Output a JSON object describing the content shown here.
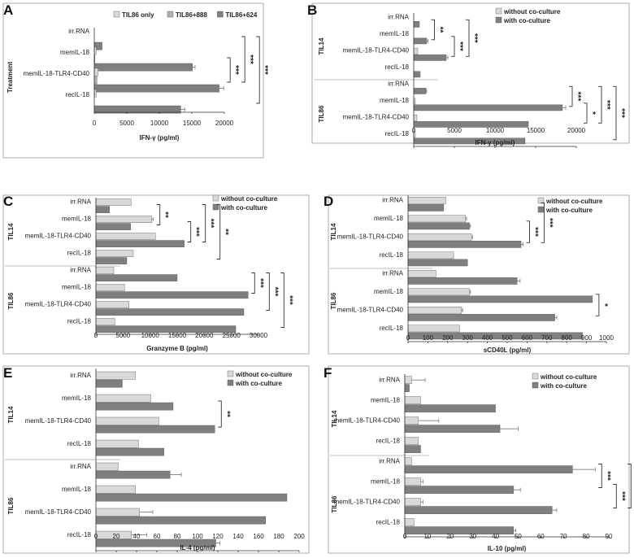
{
  "colors": {
    "light": "#d9d9d9",
    "mid": "#b0b0b0",
    "dark": "#7f7f7f"
  },
  "chart_data": [
    {
      "panel": "A",
      "type": "bar",
      "orientation": "horizontal",
      "title": "",
      "xlabel": "IFN-γ (pg/ml)",
      "ylabel": "Treatment",
      "xlim": [
        0,
        20000
      ],
      "xticks": [
        0,
        5000,
        10000,
        15000,
        20000
      ],
      "groups": [
        {
          "label": "",
          "categories": [
            "irr.RNA",
            "memIL-18",
            "memIL-18-TLR4-CD40",
            "recIL-18"
          ]
        }
      ],
      "series": [
        {
          "name": "TIL86 only",
          "color": "light",
          "values": [
            0,
            300,
            600,
            300
          ],
          "errors": [
            0,
            0,
            0,
            0
          ]
        },
        {
          "name": "TIL86+888",
          "color": "mid",
          "values": [
            0,
            100,
            400,
            0
          ],
          "errors": [
            0,
            0,
            0,
            0
          ]
        },
        {
          "name": "TIL86+624",
          "color": "dark",
          "values": [
            1200,
            15100,
            19200,
            13300
          ],
          "errors": [
            0,
            400,
            700,
            600
          ]
        }
      ],
      "legend_labels": [
        "TIL86 only",
        "TIL86+888",
        "TIL86+624"
      ],
      "legend_position": "top",
      "significance": [
        {
          "label": "***",
          "from": "memIL-18",
          "to": "memIL-18-TLR4-CD40"
        },
        {
          "label": "***",
          "from": "irr.RNA",
          "to": "memIL-18-TLR4-CD40"
        },
        {
          "label": "***",
          "from": "irr.RNA",
          "to": "recIL-18"
        }
      ]
    },
    {
      "panel": "B",
      "type": "bar",
      "orientation": "horizontal",
      "title": "",
      "xlabel": "IFN-γ (pg/ml)",
      "ylabel": "",
      "xlim": [
        0,
        20000
      ],
      "xticks": [
        0,
        5000,
        10000,
        15000,
        20000
      ],
      "groups": [
        {
          "label": "TIL14",
          "categories": [
            "irr.RNA",
            "memIL-18",
            "memIL-18-TLR4-CD40",
            "recIL-18"
          ]
        },
        {
          "label": "TIL86",
          "categories": [
            "irr.RNA",
            "memIL-18",
            "memIL-18-TLR4-CD40",
            "recIL-18"
          ]
        }
      ],
      "series": [
        {
          "name": "without co-culture",
          "color": "light",
          "values": [
            0,
            0,
            500,
            0,
            0,
            200,
            400,
            200
          ],
          "errors": [
            0,
            0,
            0,
            0,
            0,
            0,
            0,
            0
          ]
        },
        {
          "name": "with co-culture",
          "color": "dark",
          "values": [
            700,
            1600,
            4000,
            800,
            1500,
            18300,
            14100,
            13700
          ],
          "errors": [
            0,
            150,
            200,
            0,
            100,
            400,
            0,
            0
          ]
        }
      ],
      "legend_labels": [
        "without co-culture",
        "with co-culture"
      ],
      "legend_position": "top-right",
      "significance": [
        {
          "label": "**",
          "group": 0,
          "from": "irr.RNA",
          "to": "memIL-18"
        },
        {
          "label": "***",
          "group": 0,
          "from": "memIL-18",
          "to": "memIL-18-TLR4-CD40"
        },
        {
          "label": "***",
          "group": 0,
          "from": "irr.RNA",
          "to": "memIL-18-TLR4-CD40"
        },
        {
          "label": "***",
          "group": 1,
          "from": "irr.RNA",
          "to": "memIL-18"
        },
        {
          "label": "*",
          "group": 1,
          "from": "memIL-18",
          "to": "memIL-18-TLR4-CD40"
        },
        {
          "label": "***",
          "group": 1,
          "from": "irr.RNA",
          "to": "memIL-18-TLR4-CD40"
        },
        {
          "label": "***",
          "group": 1,
          "from": "irr.RNA",
          "to": "recIL-18"
        }
      ]
    },
    {
      "panel": "C",
      "type": "bar",
      "orientation": "horizontal",
      "title": "",
      "xlabel": "Granzyme B (pg/ml)",
      "ylabel": "",
      "xlim": [
        0,
        30000
      ],
      "xticks": [
        0,
        5000,
        10000,
        15000,
        20000,
        25000,
        30000
      ],
      "groups": [
        {
          "label": "TIL14",
          "categories": [
            "irr.RNA",
            "memIL-18",
            "memIL-18-TLR4-CD40",
            "recIL-18"
          ]
        },
        {
          "label": "TIL86",
          "categories": [
            "irr.RNA",
            "memIL-18",
            "memIL-18-TLR4-CD40",
            "recIL-18"
          ]
        }
      ],
      "series": [
        {
          "name": "without co-culture",
          "color": "light",
          "values": [
            6500,
            10300,
            11000,
            6900,
            3300,
            5300,
            6100,
            3500
          ],
          "errors": [
            0,
            300,
            0,
            0,
            0,
            0,
            0,
            0
          ]
        },
        {
          "name": "with co-culture",
          "color": "dark",
          "values": [
            2500,
            6400,
            16300,
            5700,
            15000,
            28100,
            27300,
            25800
          ],
          "errors": [
            0,
            0,
            0,
            0,
            0,
            0,
            0,
            0
          ]
        }
      ],
      "legend_labels": [
        "without co-culture",
        "with co-culture"
      ],
      "legend_position": "top-right",
      "significance": [
        {
          "label": "**",
          "group": 0,
          "from": "irr.RNA",
          "to": "memIL-18"
        },
        {
          "label": "***",
          "group": 0,
          "from": "memIL-18",
          "to": "memIL-18-TLR4-CD40"
        },
        {
          "label": "***",
          "group": 0,
          "from": "irr.RNA",
          "to": "memIL-18-TLR4-CD40"
        },
        {
          "label": "**",
          "group": 0,
          "from": "irr.RNA",
          "to": "recIL-18"
        },
        {
          "label": "***",
          "group": 1,
          "from": "irr.RNA",
          "to": "memIL-18"
        },
        {
          "label": "***",
          "group": 1,
          "from": "irr.RNA",
          "to": "memIL-18-TLR4-CD40"
        },
        {
          "label": "***",
          "group": 1,
          "from": "irr.RNA",
          "to": "recIL-18"
        }
      ]
    },
    {
      "panel": "D",
      "type": "bar",
      "orientation": "horizontal",
      "title": "",
      "xlabel": "sCD40L (pg/ml)",
      "ylabel": "",
      "xlim": [
        0,
        1000
      ],
      "xticks": [
        0,
        100,
        200,
        300,
        400,
        500,
        600,
        700,
        800,
        900,
        1000
      ],
      "groups": [
        {
          "label": "TIL14",
          "categories": [
            "irr.RNA",
            "memIL-18",
            "memIL-18-TLR4-CD40",
            "recIL-18"
          ]
        },
        {
          "label": "TIL86",
          "categories": [
            "irr.RNA",
            "memIL-18",
            "memIL-18-TLR4-CD40",
            "recIL-18"
          ]
        }
      ],
      "series": [
        {
          "name": "without co-culture",
          "color": "light",
          "values": [
            190,
            290,
            320,
            230,
            140,
            310,
            270,
            260
          ],
          "errors": [
            0,
            5,
            5,
            0,
            0,
            5,
            5,
            0
          ]
        },
        {
          "name": "with co-culture",
          "color": "dark",
          "values": [
            180,
            310,
            570,
            300,
            550,
            930,
            740,
            880
          ],
          "errors": [
            0,
            5,
            10,
            0,
            15,
            0,
            10,
            0
          ]
        }
      ],
      "legend_labels": [
        "without co-culture",
        "with co-culture"
      ],
      "legend_position": "top-right",
      "significance": [
        {
          "label": "***",
          "group": 0,
          "from": "memIL-18",
          "to": "memIL-18-TLR4-CD40"
        },
        {
          "label": "***",
          "group": 0,
          "from": "irr.RNA",
          "to": "memIL-18-TLR4-CD40"
        },
        {
          "label": "*",
          "group": 1,
          "from": "memIL-18",
          "to": "memIL-18-TLR4-CD40"
        }
      ]
    },
    {
      "panel": "E",
      "type": "bar",
      "orientation": "horizontal",
      "title": "",
      "xlabel": "IL-4 (pg/ml)",
      "ylabel": "",
      "xlim": [
        0,
        200
      ],
      "xticks": [
        0,
        20,
        40,
        60,
        80,
        100,
        120,
        140,
        160,
        180,
        200
      ],
      "groups": [
        {
          "label": "TIL14",
          "categories": [
            "irr.RNA",
            "memIL-18",
            "memIL-18-TLR4-CD40",
            "recIL-18"
          ]
        },
        {
          "label": "TIL86",
          "categories": [
            "irr.RNA",
            "memIL-18",
            "memIL-18-TLR4-CD40",
            "recIL-18"
          ]
        }
      ],
      "series": [
        {
          "name": "without co-culture",
          "color": "light",
          "values": [
            39,
            54,
            62,
            42,
            22,
            39,
            43,
            35
          ],
          "errors": [
            0,
            0,
            0,
            0,
            0,
            0,
            13,
            15
          ]
        },
        {
          "name": "with co-culture",
          "color": "dark",
          "values": [
            26,
            76,
            117,
            67,
            73,
            188,
            167,
            118
          ],
          "errors": [
            0,
            0,
            0,
            0,
            11,
            0,
            0,
            4
          ]
        }
      ],
      "legend_labels": [
        "without co-culture",
        "with co-culture"
      ],
      "legend_position": "top-right",
      "significance": [
        {
          "label": "**",
          "group": 0,
          "from": "memIL-18",
          "to": "memIL-18-TLR4-CD40"
        }
      ]
    },
    {
      "panel": "F",
      "type": "bar",
      "orientation": "horizontal",
      "title": "",
      "xlabel": "IL-10 (pg/ml)",
      "ylabel": "",
      "xlim": [
        0,
        90
      ],
      "xticks": [
        0,
        10,
        20,
        30,
        40,
        50,
        60,
        70,
        80,
        90
      ],
      "groups": [
        {
          "label": "TIL14",
          "categories": [
            "irr.RNA",
            "memIL-18",
            "memIL-18-TLR4-CD40",
            "recIL-18"
          ]
        },
        {
          "label": "TIL86",
          "categories": [
            "irr.RNA",
            "memIL-18",
            "memIL-18-TLR4-CD40",
            "recIL-18"
          ]
        }
      ],
      "series": [
        {
          "name": "without co-culture",
          "color": "light",
          "values": [
            3,
            7,
            6,
            6,
            3,
            7,
            7,
            4
          ],
          "errors": [
            6,
            0,
            9,
            0,
            0,
            1,
            1,
            0
          ]
        },
        {
          "name": "with co-culture",
          "color": "dark",
          "values": [
            2,
            40,
            42,
            7,
            74,
            48,
            65,
            48
          ],
          "errors": [
            0,
            0,
            8,
            0,
            10,
            3,
            2,
            1
          ]
        }
      ],
      "legend_labels": [
        "without co-culture",
        "with co-culture"
      ],
      "legend_position": "top-right",
      "significance": [
        {
          "label": "***",
          "group": 1,
          "from": "irr.RNA",
          "to": "memIL-18"
        },
        {
          "label": "***",
          "group": 1,
          "from": "memIL-18",
          "to": "memIL-18-TLR4-CD40"
        },
        {
          "label": "***",
          "group": 1,
          "from": "irr.RNA",
          "to": "memIL-18-TLR4-CD40"
        },
        {
          "label": "***",
          "group": 1,
          "from": "irr.RNA",
          "to": "recIL-18"
        }
      ]
    }
  ]
}
